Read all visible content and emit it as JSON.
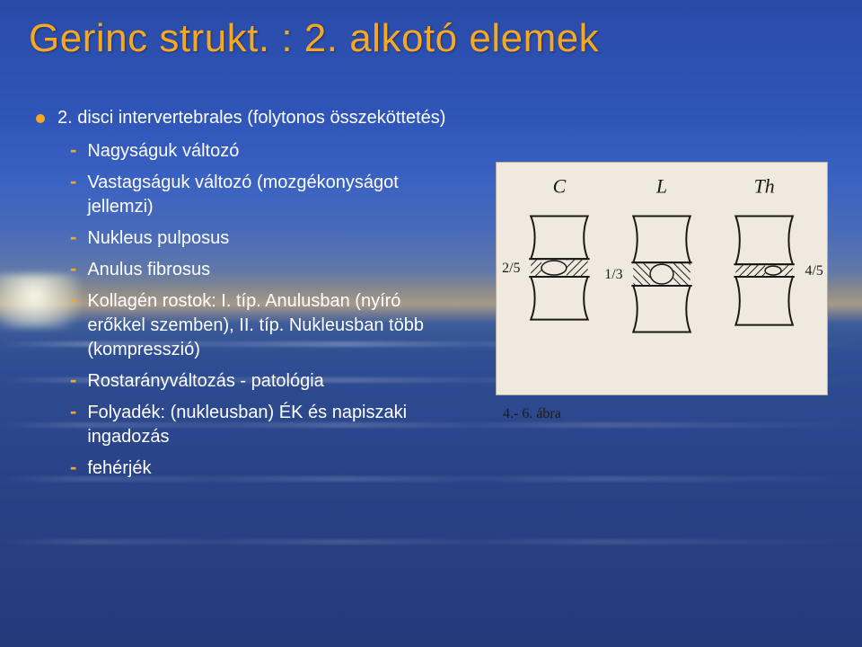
{
  "title": "Gerinc strukt. : 2. alkotó elemek",
  "main_item": "2. disci intervertebrales (folytonos összeköttetés)",
  "sub_items": [
    "Nagyságuk változó",
    "Vastagságuk változó (mozgékonyságot jellemzi)",
    "Nukleus pulposus",
    "Anulus fibrosus",
    "Kollagén rostok: I. típ. Anulusban (nyíró erőkkel szemben), II. típ. Nukleusban több (kompresszió)",
    "Rostarányváltozás  -  patológia",
    "Folyadék: (nukleusban) ÉK és napiszaki ingadozás",
    "fehérjék"
  ],
  "figure": {
    "caption": "4.- 6. ábra",
    "columns": [
      {
        "label": "C",
        "left_frac": "2/5",
        "right_frac": ""
      },
      {
        "label": "L",
        "left_frac": "1/3",
        "right_frac": ""
      },
      {
        "label": "Th",
        "left_frac": "",
        "right_frac": "4/5"
      }
    ],
    "background_color": "#efe9df",
    "stroke_color": "#1c1914",
    "hatch_color": "#1c1914",
    "label_fontsize": 22,
    "frac_fontsize": 16
  },
  "colors": {
    "title": "#f7a823",
    "bullet": "#f7a823",
    "text": "#ffffff"
  }
}
